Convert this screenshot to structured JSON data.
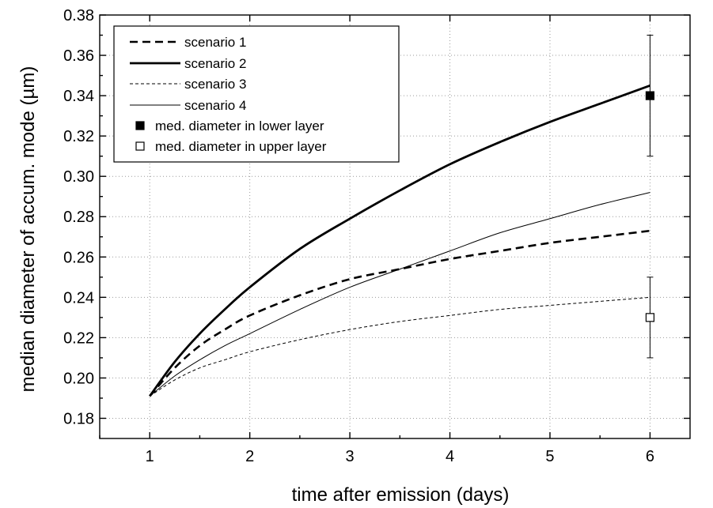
{
  "chart_data": {
    "type": "line",
    "title": "",
    "xlabel": "time after emission (days)",
    "ylabel": "median diameter of accum. mode (µm)",
    "xlim": [
      0.5,
      6.4
    ],
    "ylim": [
      0.17,
      0.38
    ],
    "xticks": [
      1,
      2,
      3,
      4,
      5,
      6
    ],
    "xtick_labels": [
      "1",
      "2",
      "3",
      "4",
      "5",
      "6"
    ],
    "yticks": [
      0.18,
      0.2,
      0.22,
      0.24,
      0.26,
      0.28,
      0.3,
      0.32,
      0.34,
      0.36,
      0.38
    ],
    "ytick_labels": [
      "0.18",
      "0.20",
      "0.22",
      "0.24",
      "0.26",
      "0.28",
      "0.30",
      "0.32",
      "0.34",
      "0.36",
      "0.38"
    ],
    "grid": true,
    "legend_position": "top-left",
    "series": [
      {
        "name": "scenario 1",
        "style": "dashed-thick",
        "x": [
          1.0,
          1.25,
          1.5,
          1.75,
          2.0,
          2.5,
          3.0,
          3.5,
          4.0,
          4.5,
          5.0,
          5.5,
          6.0
        ],
        "y": [
          0.191,
          0.205,
          0.216,
          0.224,
          0.231,
          0.241,
          0.249,
          0.254,
          0.259,
          0.263,
          0.267,
          0.27,
          0.273
        ]
      },
      {
        "name": "scenario 2",
        "style": "solid-thick",
        "x": [
          1.0,
          1.25,
          1.5,
          1.75,
          2.0,
          2.5,
          3.0,
          3.5,
          4.0,
          4.5,
          5.0,
          5.5,
          6.0
        ],
        "y": [
          0.191,
          0.208,
          0.222,
          0.234,
          0.245,
          0.264,
          0.279,
          0.293,
          0.306,
          0.317,
          0.327,
          0.336,
          0.345
        ]
      },
      {
        "name": "scenario 3",
        "style": "dashed-thin",
        "x": [
          1.0,
          1.25,
          1.5,
          1.75,
          2.0,
          2.5,
          3.0,
          3.5,
          4.0,
          4.5,
          5.0,
          5.5,
          6.0
        ],
        "y": [
          0.191,
          0.199,
          0.205,
          0.209,
          0.213,
          0.219,
          0.224,
          0.228,
          0.231,
          0.234,
          0.236,
          0.238,
          0.24
        ]
      },
      {
        "name": "scenario 4",
        "style": "solid-thin",
        "x": [
          1.0,
          1.25,
          1.5,
          1.75,
          2.0,
          2.5,
          3.0,
          3.5,
          4.0,
          4.5,
          5.0,
          5.5,
          6.0
        ],
        "y": [
          0.191,
          0.201,
          0.209,
          0.216,
          0.222,
          0.234,
          0.245,
          0.254,
          0.263,
          0.272,
          0.279,
          0.286,
          0.292
        ]
      }
    ],
    "points": [
      {
        "name": "med. diameter in lower layer",
        "marker": "filled-square",
        "x": 6,
        "y": 0.34,
        "error": [
          0.31,
          0.37
        ]
      },
      {
        "name": "med. diameter in upper layer",
        "marker": "open-square",
        "x": 6,
        "y": 0.23,
        "error": [
          0.21,
          0.25
        ]
      }
    ]
  }
}
